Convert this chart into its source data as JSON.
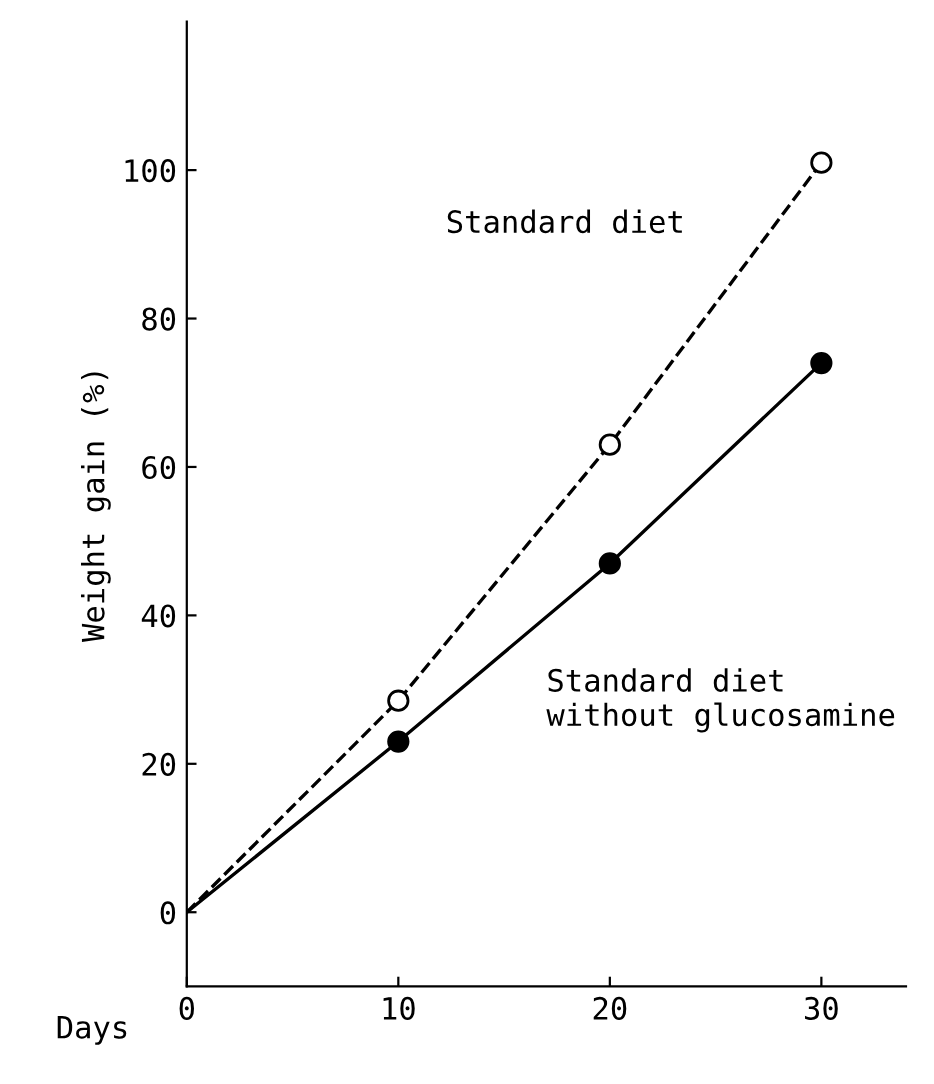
{
  "chart_data": {
    "type": "line",
    "xlabel": "Days",
    "ylabel": "Weight gain (%)",
    "x": [
      0,
      10,
      20,
      30
    ],
    "series": [
      {
        "name": "Standard diet",
        "color": "#000000",
        "values": [
          0,
          28.5,
          63,
          101
        ],
        "line_style": "dashed"
      },
      {
        "name": "Standard diet\nwithout glucosamine",
        "color": "#000000",
        "values": [
          0,
          23,
          47,
          74
        ],
        "line_style": "solid"
      }
    ],
    "marker": "circle",
    "xlim": [
      0,
      34
    ],
    "ylim": [
      -10,
      120
    ],
    "xticks": [
      0,
      10,
      20,
      30
    ],
    "yticks": [
      0,
      20,
      40,
      60,
      80,
      100
    ],
    "grid": false,
    "legend": false
  }
}
